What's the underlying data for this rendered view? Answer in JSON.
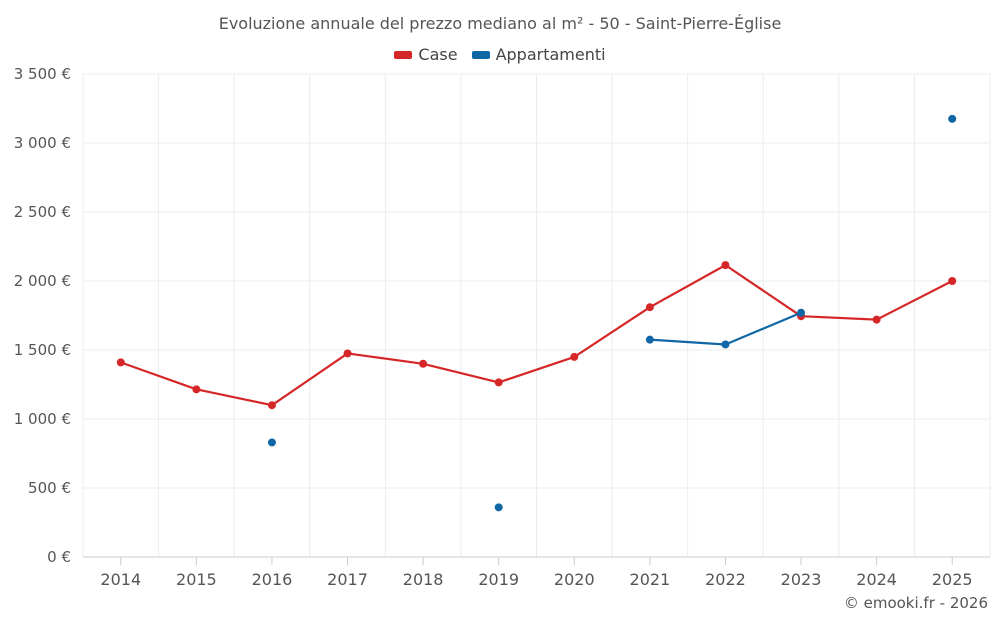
{
  "chart_data": {
    "type": "line",
    "title": "Evoluzione annuale del prezzo mediano al m² - 50 - Saint-Pierre-Église",
    "categories": [
      "2014",
      "2015",
      "2016",
      "2017",
      "2018",
      "2019",
      "2020",
      "2021",
      "2022",
      "2023",
      "2024",
      "2025"
    ],
    "ylim": [
      0,
      3500
    ],
    "yticks": [
      0,
      500,
      1000,
      1500,
      2000,
      2500,
      3000,
      3500
    ],
    "ytick_labels": [
      "0 €",
      "500 €",
      "1 000 €",
      "1 500 €",
      "2 000 €",
      "2 500 €",
      "3 000 €",
      "3 500 €"
    ],
    "grid": true,
    "legend_position": "top-center",
    "series": [
      {
        "name": "Case",
        "color": "#d62728",
        "values": [
          1410,
          1215,
          1100,
          1475,
          1400,
          1265,
          1450,
          1810,
          2115,
          1745,
          1720,
          2000
        ]
      },
      {
        "name": "Appartamenti",
        "color": "#1167a6",
        "values": [
          null,
          null,
          830,
          null,
          null,
          360,
          null,
          1575,
          1540,
          1770,
          null,
          3175
        ]
      }
    ]
  },
  "credit": "© emooki.fr - 2026"
}
